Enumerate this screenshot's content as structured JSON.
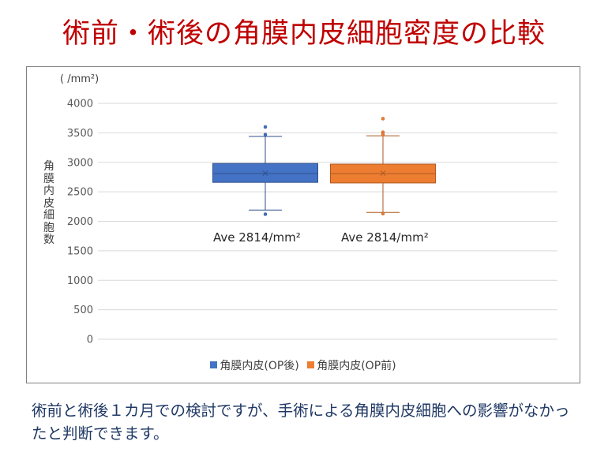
{
  "title": "術前・術後の角膜内皮細胞密度の比較",
  "caption": "術前と術後１カ月での検討ですが、手術による角膜内皮細胞への影響がなかったと判断できます。",
  "colors": {
    "title": "#c00000",
    "post_op": "#4472c4",
    "pre_op": "#ed7d31",
    "caption": "#1f3864"
  },
  "chart_data": {
    "type": "box",
    "unit_label": "( /mm²)",
    "ylabel": "角膜内皮細胞数",
    "ylim": [
      0,
      4000
    ],
    "yticks": [
      0,
      500,
      1000,
      1500,
      2000,
      2500,
      3000,
      3500,
      4000
    ],
    "grid": true,
    "legend_position": "bottom",
    "series": [
      {
        "name": "角膜内皮(OP後)",
        "color": "#4472c4",
        "whisker_low": 2190,
        "q1": 2660,
        "median": 2810,
        "q3": 2980,
        "whisker_high": 3440,
        "mean": 2814,
        "outliers": [
          3600,
          3470,
          2120
        ],
        "annotation": "Ave 2814/mm²"
      },
      {
        "name": "角膜内皮(OP前)",
        "color": "#ed7d31",
        "whisker_low": 2150,
        "q1": 2650,
        "median": 2810,
        "q3": 2970,
        "whisker_high": 3450,
        "mean": 2814,
        "outliers": [
          3740,
          3510,
          3470,
          2130
        ],
        "annotation": "Ave 2814/mm²"
      }
    ]
  }
}
